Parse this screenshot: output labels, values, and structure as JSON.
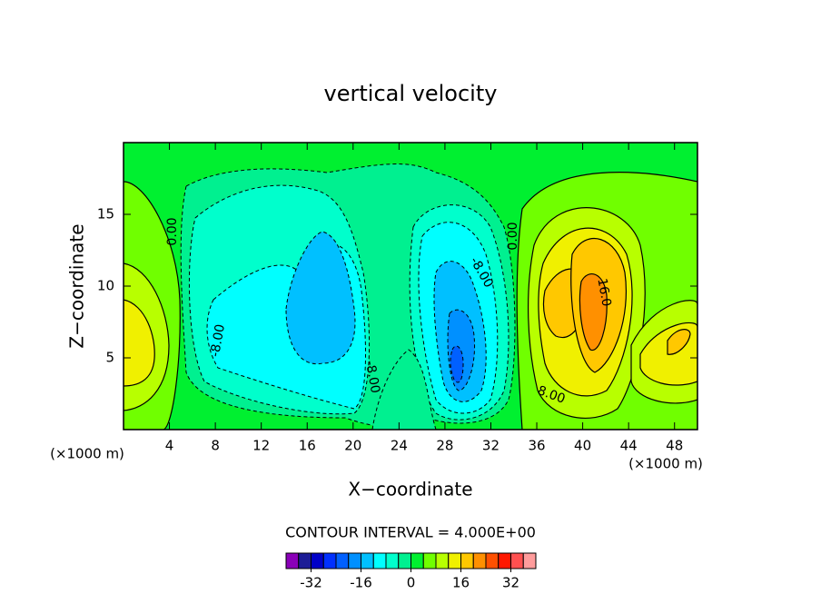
{
  "chart_data": {
    "type": "contour",
    "title": "vertical velocity",
    "x_label": "X−coordinate",
    "y_label": "Z−coordinate",
    "x_unit": "(×1000 m)",
    "x_unit_right": "(×1000 m)",
    "xlim": [
      0,
      50
    ],
    "xticks": [
      4,
      8,
      12,
      16,
      20,
      24,
      28,
      32,
      36,
      40,
      44,
      48
    ],
    "ylim": [
      0,
      20
    ],
    "yticks": [
      5,
      10,
      15
    ],
    "contour_labels": [
      "0.00",
      "-8.00",
      "-8.00",
      "-8.00",
      "0.00",
      "16.0",
      "8.00"
    ],
    "colorbar": {
      "caption": "CONTOUR INTERVAL = 4.000E+00",
      "levels": [
        -40,
        -36,
        -32,
        -28,
        -24,
        -20,
        -16,
        -12,
        -8,
        -4,
        0,
        4,
        8,
        12,
        16,
        20,
        24,
        28,
        32,
        36,
        40
      ],
      "colors": [
        "#8a00b8",
        "#1c1c96",
        "#0000c8",
        "#0030ff",
        "#0060ff",
        "#0090ff",
        "#00c0ff",
        "#00ffff",
        "#00ffcc",
        "#00f090",
        "#00f030",
        "#70ff00",
        "#b8ff00",
        "#f0f000",
        "#ffc800",
        "#ff9000",
        "#ff5000",
        "#ff1800",
        "#ff5050",
        "#ff9c9c"
      ],
      "ticks": [
        -32,
        -16,
        0,
        16,
        32
      ]
    }
  }
}
